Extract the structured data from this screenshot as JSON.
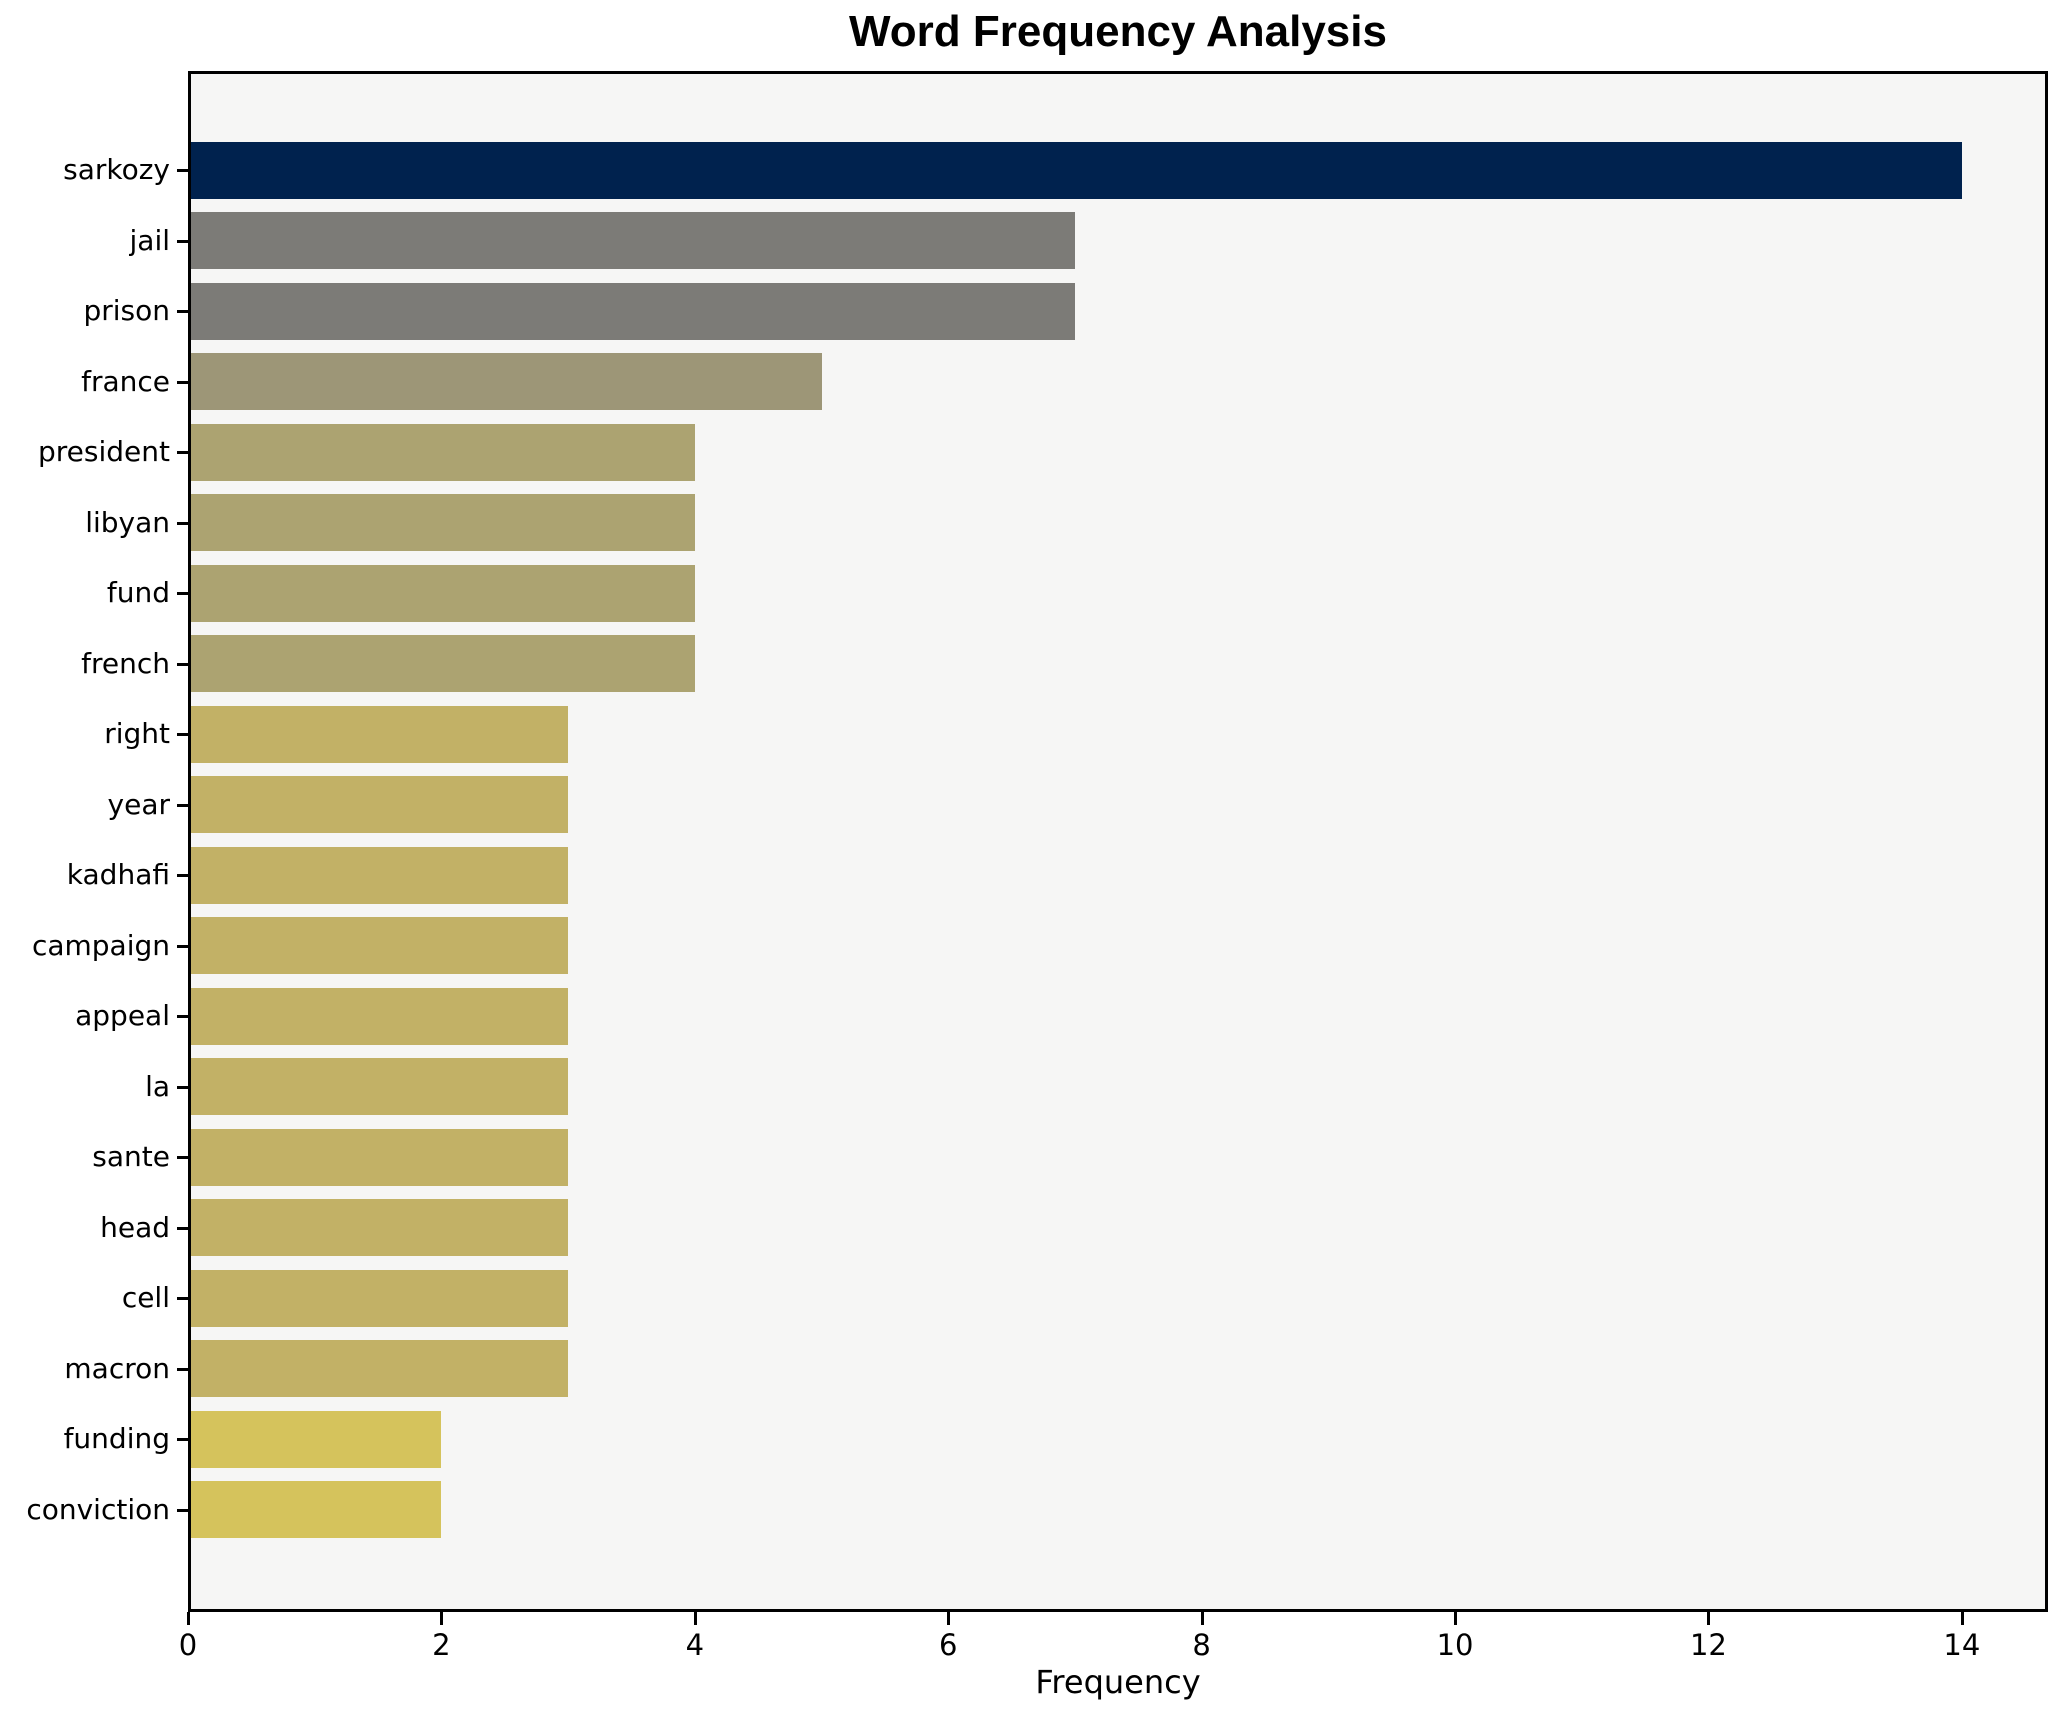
{
  "figure": {
    "background": "#ffffff"
  },
  "chart_data": {
    "type": "bar",
    "orientation": "horizontal",
    "title": "Word Frequency Analysis",
    "xlabel": "Frequency",
    "ylabel": "",
    "categories": [
      "sarkozy",
      "jail",
      "prison",
      "france",
      "president",
      "libyan",
      "fund",
      "french",
      "right",
      "year",
      "kadhafi",
      "campaign",
      "appeal",
      "la",
      "sante",
      "head",
      "cell",
      "macron",
      "funding",
      "conviction"
    ],
    "values": [
      14,
      7,
      7,
      5,
      4,
      4,
      4,
      4,
      3,
      3,
      3,
      3,
      3,
      3,
      3,
      3,
      3,
      3,
      2,
      2
    ],
    "bar_colors": [
      "#00224e",
      "#7c7b77",
      "#7c7b77",
      "#9d9677",
      "#aca371",
      "#aca371",
      "#aca371",
      "#aca371",
      "#c2b166",
      "#c2b166",
      "#c2b166",
      "#c2b166",
      "#c2b166",
      "#c2b166",
      "#c2b166",
      "#c2b166",
      "#c2b166",
      "#c2b166",
      "#d5c35c",
      "#d5c35c"
    ],
    "xticks": [
      0,
      2,
      4,
      6,
      8,
      10,
      12,
      14
    ],
    "xlim": [
      0,
      14.68
    ],
    "grid": false,
    "legend_position": "none",
    "plot_background": "#f6f6f5",
    "axis_color": "#000000"
  }
}
